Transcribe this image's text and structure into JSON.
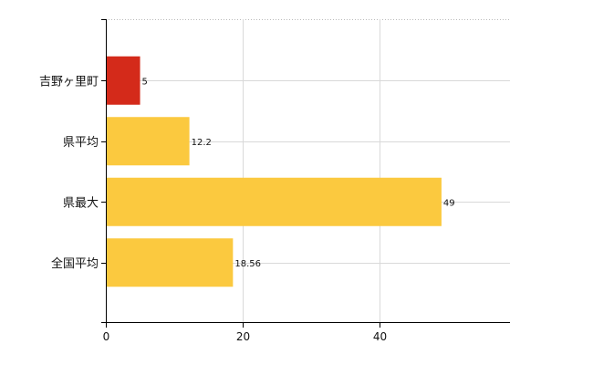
{
  "chart_data": {
    "type": "bar",
    "orientation": "horizontal",
    "categories": [
      "吉野ヶ里町",
      "県平均",
      "県最大",
      "全国平均"
    ],
    "values": [
      5,
      12.2,
      49,
      18.56
    ],
    "value_labels": [
      "5",
      "12.2",
      "49",
      "18.56"
    ],
    "colors": [
      "#d42a1a",
      "#fbc93f",
      "#fbc93f",
      "#fbc93f"
    ],
    "xlim": [
      0,
      59
    ],
    "x_ticks": [
      0,
      20,
      40
    ],
    "x_tick_labels": [
      "0",
      "20",
      "40"
    ],
    "grid": true,
    "title": "",
    "xlabel": "",
    "ylabel": ""
  }
}
